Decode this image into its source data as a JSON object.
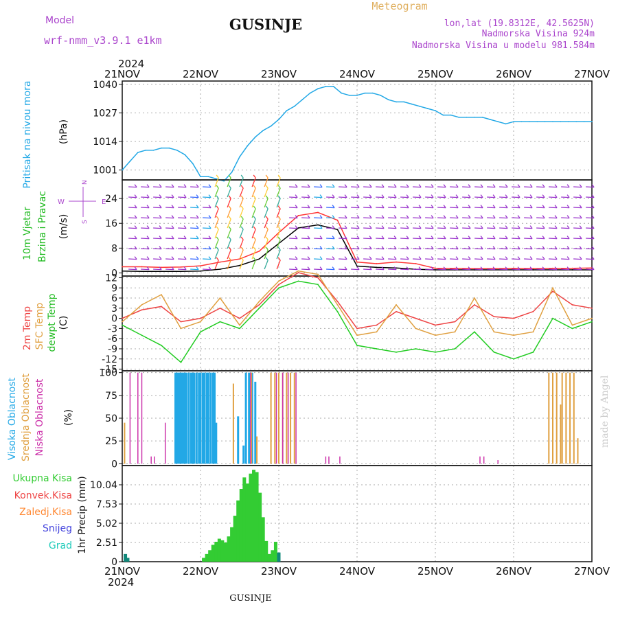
{
  "header": {
    "model_label": "Model",
    "model_name": "wrf-nmm_v3.9.1 e1km",
    "station": "GUSINJE",
    "meteogram_label": "Meteogram",
    "lonlat": "lon,lat (19.8312E, 42.5625N)",
    "elevation": "Nadmorska Visina 924m",
    "model_elevation": "Nadmorska Visina u modelu 981.584m",
    "footer_station": "GUSINJE",
    "watermark": "made by Angel"
  },
  "colors": {
    "pressure": "#22a8e6",
    "wind_speed": "#000000",
    "wind_gust": "#ff3333",
    "temp2m": "#ee4444",
    "sfc_temp": "#e0a040",
    "dewpoint": "#22cc22",
    "high_cloud": "#22a8e6",
    "mid_cloud": "#e0a040",
    "low_cloud": "#cc33aa",
    "total_precip": "#33cc33",
    "conv_precip": "#ee4444",
    "frozen_precip": "#ff8833",
    "snow": "#4444dd",
    "hail": "#22ccbb",
    "ytitle_green": "#22bb22",
    "ytitle_purple": "#aa44cc",
    "header_purple": "#aa44cc",
    "meteogram_gold": "#e0b060"
  },
  "chart_data": [
    {
      "panel": "pressure",
      "type": "line",
      "x_dates": [
        "21NOV",
        "22NOV",
        "23NOV",
        "24NOV",
        "25NOV",
        "26NOV",
        "27NOV"
      ],
      "year": "2024",
      "ylabel_lines": [
        "Pritisak na nivou mora",
        "(hPa)"
      ],
      "yticks": [
        1001,
        1014,
        1027,
        1040
      ],
      "ylim": [
        996.5,
        1041.5
      ],
      "series": [
        {
          "x": [
            0,
            0.1,
            0.2,
            0.3,
            0.4,
            0.5,
            0.6,
            0.7,
            0.8,
            0.9,
            1,
            1.1,
            1.2,
            1.3,
            1.4,
            1.5,
            1.6,
            1.7,
            1.8,
            1.9,
            2,
            2.1,
            2.2,
            2.3,
            2.4,
            2.5,
            2.6,
            2.7,
            2.8,
            2.9,
            3,
            3.1,
            3.2,
            3.3,
            3.4,
            3.5,
            3.6,
            3.7,
            3.8,
            3.9,
            4,
            4.1,
            4.2,
            4.3,
            4.4,
            4.5,
            4.6,
            4.7,
            4.8,
            4.9,
            5,
            5.1,
            5.2,
            5.3,
            5.4,
            5.5,
            5.6,
            5.7,
            5.8,
            5.9,
            6
          ],
          "values": [
            1001,
            1005,
            1009,
            1010,
            1010,
            1011,
            1011,
            1010,
            1008,
            1004,
            998,
            998,
            997,
            996,
            1000,
            1007,
            1012,
            1016,
            1019,
            1021,
            1024,
            1028,
            1030,
            1033,
            1036,
            1038,
            1039,
            1039,
            1036,
            1035,
            1035,
            1036,
            1036,
            1035,
            1033,
            1032,
            1032,
            1031,
            1030,
            1029,
            1028,
            1026,
            1026,
            1025,
            1025,
            1025,
            1025,
            1024,
            1023,
            1022,
            1023,
            1023,
            1023,
            1023,
            1023,
            1023,
            1023,
            1023,
            1023,
            1023,
            1023
          ]
        }
      ]
    },
    {
      "panel": "wind",
      "type": "line",
      "x_dates": [
        "21NOV",
        "22NOV",
        "23NOV",
        "24NOV",
        "25NOV",
        "26NOV",
        "27NOV"
      ],
      "ylabel_lines": [
        "10m Vjetar",
        "Brzina i Pravac",
        "(m/s)"
      ],
      "yticks": [
        0,
        8,
        16,
        24
      ],
      "ylim": [
        -1,
        30
      ],
      "compass": {
        "n": "N",
        "s": "S",
        "e": "E",
        "w": "W"
      },
      "series": [
        {
          "name": "speed",
          "x": [
            0,
            0.25,
            0.5,
            0.75,
            1,
            1.25,
            1.5,
            1.75,
            2,
            2.25,
            2.5,
            2.75,
            3,
            3.25,
            3.5,
            3.75,
            4,
            4.25,
            4.5,
            4.75,
            5,
            5.25,
            5.5,
            5.75,
            6
          ],
          "values": [
            0.6,
            0.5,
            0.5,
            0.5,
            0.6,
            1.2,
            2.4,
            4.5,
            9.5,
            14.5,
            15.5,
            14,
            2.2,
            1.8,
            1.6,
            1.2,
            1,
            1,
            1,
            1,
            1,
            1,
            1,
            1,
            1
          ]
        },
        {
          "name": "gust",
          "x": [
            0,
            0.25,
            0.5,
            0.75,
            1,
            1.25,
            1.5,
            1.75,
            2,
            2.25,
            2.5,
            2.75,
            3,
            3.25,
            3.5,
            3.75,
            4,
            4.25,
            4.5,
            4.75,
            5,
            5.25,
            5.5,
            5.75,
            6
          ],
          "values": [
            2,
            2,
            1.8,
            1.9,
            2.3,
            3.5,
            4.5,
            7,
            13,
            18.5,
            19.5,
            17,
            3.5,
            3,
            3.5,
            3,
            1.5,
            1.5,
            1.4,
            1.4,
            1.5,
            1.4,
            1.5,
            1.5,
            1.6
          ]
        }
      ]
    },
    {
      "panel": "temperature",
      "type": "line",
      "x_dates": [
        "21NOV",
        "22NOV",
        "23NOV",
        "24NOV",
        "25NOV",
        "26NOV",
        "27NOV"
      ],
      "ylabel_lines": [
        "2m Temp",
        "SFC Temp",
        "dewpt Temp",
        "(C)"
      ],
      "yticks": [
        12,
        9,
        6,
        3,
        0,
        -3,
        -6,
        -9,
        -12,
        -15
      ],
      "ylim": [
        -15.5,
        12.5
      ],
      "series": [
        {
          "name": "2m Temp",
          "x": [
            0,
            0.25,
            0.5,
            0.75,
            1,
            1.25,
            1.5,
            1.75,
            2,
            2.25,
            2.5,
            2.75,
            3,
            3.25,
            3.5,
            3.75,
            4,
            4.25,
            4.5,
            4.75,
            5,
            5.25,
            5.5,
            5.75,
            6
          ],
          "values": [
            0,
            2.5,
            3.5,
            -1,
            0,
            3,
            0,
            4,
            10,
            13.5,
            12,
            5,
            -3,
            -2,
            2,
            0,
            -2,
            -1,
            4,
            0.5,
            0,
            2,
            8,
            4,
            3
          ]
        },
        {
          "name": "SFC Temp",
          "x": [
            0,
            0.25,
            0.5,
            0.75,
            1,
            1.25,
            1.5,
            1.75,
            2,
            2.25,
            2.5,
            2.75,
            3,
            3.25,
            3.5,
            3.75,
            4,
            4.25,
            4.5,
            4.75,
            5,
            5.25,
            5.5,
            5.75,
            6
          ],
          "values": [
            -1,
            4,
            7,
            -3,
            -1,
            6,
            -2,
            5,
            11,
            14,
            13,
            4,
            -5,
            -4,
            4,
            -3,
            -5,
            -4,
            6,
            -4,
            -5,
            -4,
            9,
            -2,
            0
          ]
        },
        {
          "name": "dewpt Temp",
          "x": [
            0,
            0.25,
            0.5,
            0.75,
            1,
            1.25,
            1.5,
            1.75,
            2,
            2.25,
            2.5,
            2.75,
            3,
            3.25,
            3.5,
            3.75,
            4,
            4.25,
            4.5,
            4.75,
            5,
            5.25,
            5.5,
            5.75,
            6
          ],
          "values": [
            -2,
            -5,
            -8,
            -13,
            -4,
            -1,
            -3,
            3,
            9,
            11,
            10,
            2,
            -8,
            -9,
            -10,
            -9,
            -10,
            -9,
            -4,
            -10,
            -12,
            -10,
            0,
            -3,
            -1
          ]
        }
      ]
    },
    {
      "panel": "cloud",
      "type": "bar",
      "x_dates": [
        "21NOV",
        "22NOV",
        "23NOV",
        "24NOV",
        "25NOV",
        "26NOV",
        "27NOV"
      ],
      "ylabel_lines": [
        "Visoka Oblacnost",
        "Srednja Oblacnost",
        "Niska Oblacnost",
        "(%)"
      ],
      "yticks": [
        0,
        25,
        50,
        75,
        100
      ],
      "ylim": [
        -2,
        102
      ],
      "high": [
        {
          "x": 0.68,
          "v": 100
        },
        {
          "x": 0.7,
          "v": 100
        },
        {
          "x": 0.72,
          "v": 100
        },
        {
          "x": 0.74,
          "v": 100
        },
        {
          "x": 0.76,
          "v": 100
        },
        {
          "x": 0.78,
          "v": 100
        },
        {
          "x": 0.8,
          "v": 100
        },
        {
          "x": 0.82,
          "v": 100
        },
        {
          "x": 0.85,
          "v": 100
        },
        {
          "x": 0.88,
          "v": 100
        },
        {
          "x": 0.9,
          "v": 100
        },
        {
          "x": 0.92,
          "v": 100
        },
        {
          "x": 0.95,
          "v": 100
        },
        {
          "x": 0.98,
          "v": 100
        },
        {
          "x": 1.0,
          "v": 100
        },
        {
          "x": 1.03,
          "v": 100
        },
        {
          "x": 1.05,
          "v": 100
        },
        {
          "x": 1.08,
          "v": 100
        },
        {
          "x": 1.1,
          "v": 100
        },
        {
          "x": 1.13,
          "v": 100
        },
        {
          "x": 1.16,
          "v": 100
        },
        {
          "x": 1.18,
          "v": 100
        },
        {
          "x": 1.2,
          "v": 45
        },
        {
          "x": 1.48,
          "v": 52
        },
        {
          "x": 1.55,
          "v": 20
        },
        {
          "x": 1.58,
          "v": 100
        },
        {
          "x": 1.62,
          "v": 100
        },
        {
          "x": 1.66,
          "v": 100
        },
        {
          "x": 1.7,
          "v": 90
        }
      ],
      "mid": [
        {
          "x": 0.03,
          "v": 45
        },
        {
          "x": 1.42,
          "v": 88
        },
        {
          "x": 1.65,
          "v": 100
        },
        {
          "x": 1.72,
          "v": 30
        },
        {
          "x": 1.9,
          "v": 100
        },
        {
          "x": 1.95,
          "v": 100
        },
        {
          "x": 2.0,
          "v": 100
        },
        {
          "x": 2.05,
          "v": 100
        },
        {
          "x": 2.1,
          "v": 100
        },
        {
          "x": 2.15,
          "v": 100
        },
        {
          "x": 2.2,
          "v": 100
        },
        {
          "x": 5.45,
          "v": 100
        },
        {
          "x": 5.5,
          "v": 100
        },
        {
          "x": 5.55,
          "v": 100
        },
        {
          "x": 5.6,
          "v": 65
        },
        {
          "x": 5.62,
          "v": 100
        },
        {
          "x": 5.67,
          "v": 100
        },
        {
          "x": 5.72,
          "v": 100
        },
        {
          "x": 5.77,
          "v": 100
        },
        {
          "x": 5.82,
          "v": 28
        }
      ],
      "low": [
        {
          "x": 0.1,
          "v": 100
        },
        {
          "x": 0.2,
          "v": 100
        },
        {
          "x": 0.25,
          "v": 100
        },
        {
          "x": 0.37,
          "v": 8
        },
        {
          "x": 0.41,
          "v": 8
        },
        {
          "x": 0.55,
          "v": 45
        },
        {
          "x": 1.64,
          "v": 100
        },
        {
          "x": 1.97,
          "v": 100
        },
        {
          "x": 2.05,
          "v": 100
        },
        {
          "x": 2.12,
          "v": 100
        },
        {
          "x": 2.22,
          "v": 100
        },
        {
          "x": 2.6,
          "v": 8
        },
        {
          "x": 2.64,
          "v": 8
        },
        {
          "x": 2.78,
          "v": 8
        },
        {
          "x": 4.57,
          "v": 8
        },
        {
          "x": 4.62,
          "v": 8
        },
        {
          "x": 4.8,
          "v": 4
        }
      ]
    },
    {
      "panel": "precip",
      "type": "bar",
      "x_dates": [
        "21NOV",
        "22NOV",
        "23NOV",
        "24NOV",
        "25NOV",
        "26NOV",
        "27NOV"
      ],
      "year": "2024",
      "ylabel_lines": [
        "1hr Precip (mm)"
      ],
      "legend": [
        "Ukupna Kisa",
        "Konvek.Kisa",
        "Zaledj.Kisa",
        "Snijeg",
        "Grad"
      ],
      "yticks": [
        0,
        2.51,
        5.02,
        7.53,
        10.04
      ],
      "ytick_labels": [
        "0",
        "2.51",
        "5.02",
        "7.53",
        "10.04"
      ],
      "ylim": [
        0,
        12.55
      ],
      "total": [
        {
          "x": 0.04,
          "v": 1.0
        },
        {
          "x": 0.07,
          "v": 0.5
        },
        {
          "x": 1.04,
          "v": 0.5
        },
        {
          "x": 1.08,
          "v": 1.0
        },
        {
          "x": 1.12,
          "v": 1.5
        },
        {
          "x": 1.16,
          "v": 2.2
        },
        {
          "x": 1.2,
          "v": 2.6
        },
        {
          "x": 1.24,
          "v": 3.0
        },
        {
          "x": 1.28,
          "v": 2.8
        },
        {
          "x": 1.32,
          "v": 2.5
        },
        {
          "x": 1.36,
          "v": 3.3
        },
        {
          "x": 1.4,
          "v": 4.5
        },
        {
          "x": 1.44,
          "v": 6.0
        },
        {
          "x": 1.48,
          "v": 8.0
        },
        {
          "x": 1.52,
          "v": 9.5
        },
        {
          "x": 1.56,
          "v": 11.0
        },
        {
          "x": 1.6,
          "v": 10.2
        },
        {
          "x": 1.64,
          "v": 11.5
        },
        {
          "x": 1.68,
          "v": 12.0
        },
        {
          "x": 1.72,
          "v": 11.7
        },
        {
          "x": 1.76,
          "v": 9.0
        },
        {
          "x": 1.8,
          "v": 5.8
        },
        {
          "x": 1.84,
          "v": 2.7
        },
        {
          "x": 1.88,
          "v": 1.0
        },
        {
          "x": 1.92,
          "v": 1.5
        },
        {
          "x": 1.96,
          "v": 2.6
        },
        {
          "x": 2.0,
          "v": 1.2
        }
      ]
    }
  ]
}
